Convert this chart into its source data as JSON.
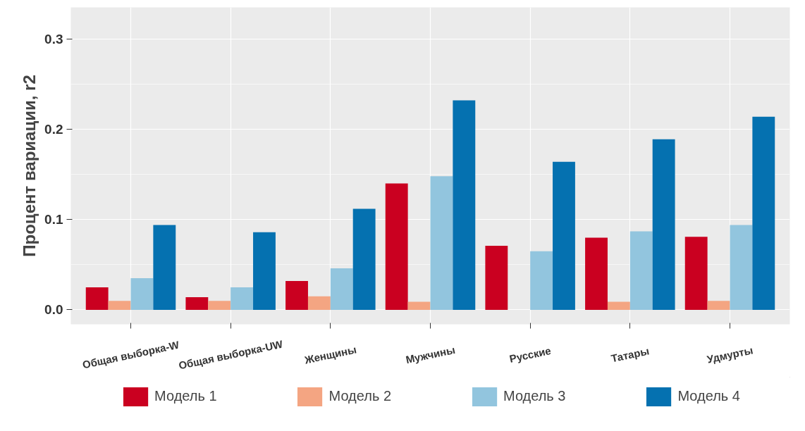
{
  "chart_data": {
    "type": "bar",
    "ylabel": "Процент вариации, r2",
    "categories": [
      "Общая выборка-W",
      "Общая выборка-UW",
      "Женщины",
      "Мужчины",
      "Русские",
      "Татары",
      "Удмурты"
    ],
    "series": [
      {
        "name": "Модель 1",
        "color": "#ca0020",
        "values": [
          0.025,
          0.014,
          0.032,
          0.14,
          0.071,
          0.08,
          0.081
        ]
      },
      {
        "name": "Модель 2",
        "color": "#f4a582",
        "values": [
          0.01,
          0.01,
          0.015,
          0.009,
          null,
          0.009,
          0.01
        ]
      },
      {
        "name": "Модель 3",
        "color": "#92c5de",
        "values": [
          0.035,
          0.025,
          0.046,
          0.148,
          0.065,
          0.087,
          0.094
        ]
      },
      {
        "name": "Модель 4",
        "color": "#0571b0",
        "values": [
          0.094,
          0.086,
          0.112,
          0.232,
          0.164,
          0.189,
          0.214
        ]
      }
    ],
    "ylim": [
      -0.016,
      0.335
    ],
    "yticks": [
      {
        "value": 0,
        "label": "0.0"
      },
      0.1,
      0.2,
      0.3
    ],
    "grid": true,
    "legend": "bottom"
  }
}
